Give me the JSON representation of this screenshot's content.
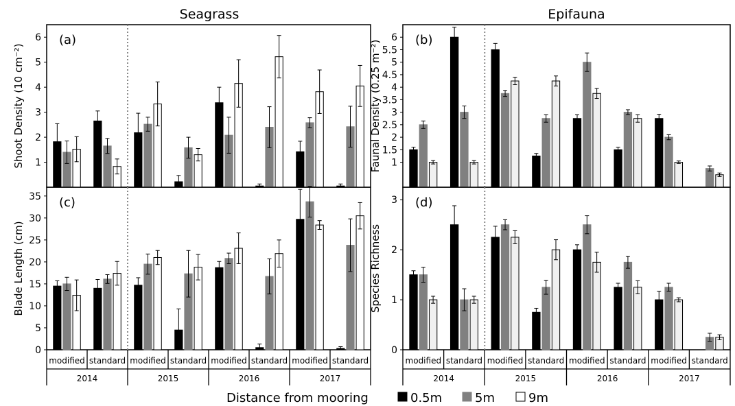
{
  "headers": {
    "left": "Seagrass",
    "right": "Epifauna"
  },
  "legend": {
    "label": "Distance from mooring",
    "items": [
      {
        "name": "0.5m",
        "color": "#000000"
      },
      {
        "name": "5m",
        "color": "#808080"
      },
      {
        "name": "9m",
        "color": "#ffffff"
      }
    ]
  },
  "groups": {
    "years": [
      "2014",
      "2015",
      "2016",
      "2017"
    ],
    "treatments": [
      "modified",
      "standard"
    ]
  },
  "chart_data": [
    {
      "type": "bar",
      "panel": "(a)",
      "title": "",
      "ylabel": "Shoot Density (10 cm⁻²)",
      "ylim": [
        0,
        6.5
      ],
      "yticks": [
        "1",
        "2",
        "3",
        "4",
        "5",
        "6"
      ],
      "categories": [
        "2014 modified",
        "2014 standard",
        "2015 modified",
        "2015 standard",
        "2016 modified",
        "2016 standard",
        "2017 modified",
        "2017 standard"
      ],
      "series": [
        {
          "name": "0.5m",
          "values": [
            1.82,
            2.65,
            2.18,
            0.22,
            3.38,
            0.05,
            1.42,
            0.05
          ],
          "errors": [
            0.72,
            0.4,
            0.78,
            0.25,
            0.62,
            0.08,
            0.42,
            0.08
          ]
        },
        {
          "name": "5m",
          "values": [
            1.4,
            1.65,
            2.52,
            1.58,
            2.08,
            2.4,
            2.58,
            2.42
          ],
          "errors": [
            0.45,
            0.3,
            0.28,
            0.42,
            0.72,
            0.82,
            0.2,
            0.82
          ]
        },
        {
          "name": "9m",
          "values": [
            1.52,
            0.83,
            3.33,
            1.3,
            4.15,
            5.22,
            3.82,
            4.05
          ],
          "errors": [
            0.5,
            0.3,
            0.88,
            0.25,
            0.95,
            0.85,
            0.87,
            0.82
          ]
        }
      ]
    },
    {
      "type": "bar",
      "panel": "(b)",
      "title": "",
      "ylabel": "Faunal Density (0.25 m⁻²)",
      "ylim": [
        0,
        6.5
      ],
      "yticks": [
        "1",
        "1.5",
        "2",
        "2.5",
        "3",
        "3.5",
        "4",
        "4.5",
        "5",
        "5.5",
        "6"
      ],
      "categories": [
        "2014 modified",
        "2014 standard",
        "2015 modified",
        "2015 standard",
        "2016 modified",
        "2016 standard",
        "2017 modified",
        "2017 standard"
      ],
      "series": [
        {
          "name": "0.5m",
          "values": [
            1.5,
            6.0,
            5.5,
            1.25,
            2.75,
            1.5,
            2.75,
            0
          ],
          "errors": [
            0.1,
            0.4,
            0.25,
            0.1,
            0.15,
            0.1,
            0.17,
            0
          ]
        },
        {
          "name": "5m",
          "values": [
            2.5,
            3.0,
            3.75,
            2.75,
            5.0,
            3.0,
            2.0,
            0.75
          ],
          "errors": [
            0.15,
            0.25,
            0.12,
            0.15,
            0.37,
            0.1,
            0.1,
            0.1
          ]
        },
        {
          "name": "9m",
          "values": [
            1.0,
            1.0,
            4.25,
            4.25,
            3.75,
            2.75,
            1.0,
            0.5
          ],
          "errors": [
            0.07,
            0.07,
            0.15,
            0.2,
            0.2,
            0.15,
            0.05,
            0.07
          ]
        }
      ]
    },
    {
      "type": "bar",
      "panel": "(c)",
      "title": "",
      "ylabel": "Blade Length (cm)",
      "ylim": [
        0,
        37
      ],
      "yticks": [
        "0",
        "5",
        "10",
        "15",
        "20",
        "25",
        "30",
        "35"
      ],
      "categories": [
        "2014 modified",
        "2014 standard",
        "2015 modified",
        "2015 standard",
        "2016 modified",
        "2016 standard",
        "2017 modified",
        "2017 standard"
      ],
      "series": [
        {
          "name": "0.5m",
          "values": [
            14.5,
            14.0,
            14.7,
            4.5,
            18.7,
            0.5,
            29.7,
            0.3
          ],
          "errors": [
            1.2,
            2.0,
            1.7,
            4.8,
            1.4,
            0.8,
            6.8,
            0.4
          ]
        },
        {
          "name": "5m",
          "values": [
            15.0,
            16.1,
            19.5,
            17.3,
            20.8,
            16.7,
            33.7,
            23.8
          ],
          "errors": [
            1.5,
            1.0,
            2.3,
            5.3,
            1.2,
            4.0,
            3.5,
            6.0
          ]
        },
        {
          "name": "9m",
          "values": [
            12.4,
            17.4,
            21.0,
            18.8,
            23.1,
            21.9,
            28.4,
            30.5
          ],
          "errors": [
            3.5,
            2.7,
            1.6,
            2.9,
            3.5,
            3.1,
            1.0,
            3.0
          ]
        }
      ]
    },
    {
      "type": "bar",
      "panel": "(d)",
      "title": "",
      "ylabel": "Species Richness",
      "ylim": [
        0,
        3.25
      ],
      "yticks": [
        "0",
        "1",
        "2",
        "3"
      ],
      "categories": [
        "2014 modified",
        "2014 standard",
        "2015 modified",
        "2015 standard",
        "2016 modified",
        "2016 standard",
        "2017 modified",
        "2017 standard"
      ],
      "series": [
        {
          "name": "0.5m",
          "values": [
            1.5,
            2.5,
            2.25,
            0.75,
            2.0,
            1.25,
            1.0,
            0
          ],
          "errors": [
            0.08,
            0.38,
            0.22,
            0.08,
            0.1,
            0.08,
            0.17,
            0
          ]
        },
        {
          "name": "5m",
          "values": [
            1.5,
            1.0,
            2.5,
            1.25,
            2.5,
            1.75,
            1.25,
            0.25
          ],
          "errors": [
            0.15,
            0.22,
            0.1,
            0.14,
            0.18,
            0.12,
            0.08,
            0.08
          ]
        },
        {
          "name": "9m",
          "values": [
            1.0,
            1.0,
            2.25,
            2.0,
            1.75,
            1.25,
            1.0,
            0.25
          ],
          "errors": [
            0.07,
            0.07,
            0.13,
            0.2,
            0.2,
            0.13,
            0.04,
            0.05
          ]
        }
      ]
    }
  ]
}
